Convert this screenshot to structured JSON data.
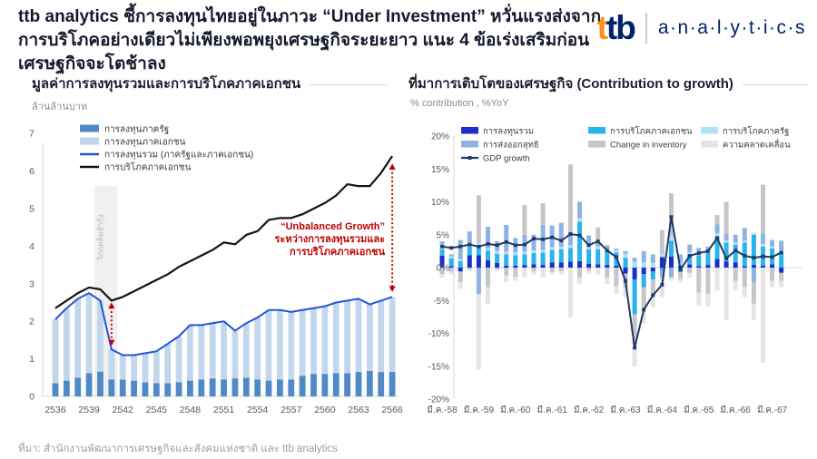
{
  "header": {
    "title": "ttb analytics ชี้การลงทุนไทยอยู่ในภาวะ “Under Investment” หวั่นแรงส่งจากการบริโภคอย่างเดียวไม่เพียงพอพยุงเศรษฐกิจระยะยาว แนะ 4 ข้อเร่งเสริมก่อนเศรษฐกิจจะโตช้าลง",
    "logo": {
      "ttb_t1": "t",
      "ttb_t2": "t",
      "ttb_b": "b",
      "analytics": "a·n·a·l·y·t·i·c·s"
    }
  },
  "footer": {
    "source": "ที่มา: สำนักงานพัฒนาการเศรษฐกิจและสังคมแห่งชาติ และ ttb analytics"
  },
  "colors": {
    "accent_red": "#c00000",
    "axis_text": "#595959",
    "rule_gray": "#d8d8d8"
  },
  "chart_data": [
    {
      "type": "bar",
      "title": "มูลค่าการลงทุนรวมและการบริโภคภาคเอกชน",
      "ylabel": "ล้านล้านบาท",
      "ylim": [
        0,
        7
      ],
      "ytick_step": 1,
      "x": [
        2536,
        2537,
        2538,
        2539,
        2540,
        2541,
        2542,
        2543,
        2544,
        2545,
        2546,
        2547,
        2548,
        2549,
        2550,
        2551,
        2552,
        2553,
        2554,
        2555,
        2556,
        2557,
        2558,
        2559,
        2560,
        2561,
        2562,
        2563,
        2564,
        2565,
        2566
      ],
      "x_tick_every": 3,
      "series": [
        {
          "name": "การลงทุนภาครัฐ",
          "kind": "bar",
          "color": "#5089c8",
          "values": [
            0.35,
            0.42,
            0.5,
            0.62,
            0.66,
            0.45,
            0.45,
            0.42,
            0.38,
            0.35,
            0.35,
            0.38,
            0.42,
            0.45,
            0.48,
            0.45,
            0.48,
            0.5,
            0.45,
            0.42,
            0.45,
            0.45,
            0.55,
            0.6,
            0.6,
            0.62,
            0.62,
            0.65,
            0.68,
            0.65,
            0.65
          ]
        },
        {
          "name": "การลงทุนภาคเอกชน",
          "kind": "bar",
          "color": "#c3d7ec",
          "values": [
            1.7,
            1.93,
            2.1,
            2.13,
            1.89,
            0.8,
            0.65,
            0.68,
            0.77,
            0.85,
            1.05,
            1.22,
            1.48,
            1.45,
            1.47,
            1.55,
            1.27,
            1.45,
            1.65,
            1.88,
            1.85,
            1.8,
            1.75,
            1.75,
            1.8,
            1.88,
            1.93,
            1.95,
            1.77,
            1.9,
            2.0
          ]
        },
        {
          "name": "การลงทุนรวม (ภาครัฐและภาคเอกชน)",
          "kind": "line",
          "color": "#2255d4",
          "values": [
            2.05,
            2.35,
            2.6,
            2.75,
            2.55,
            1.25,
            1.1,
            1.1,
            1.15,
            1.2,
            1.4,
            1.6,
            1.9,
            1.9,
            1.95,
            2.0,
            1.75,
            1.95,
            2.1,
            2.3,
            2.3,
            2.25,
            2.3,
            2.35,
            2.4,
            2.5,
            2.55,
            2.6,
            2.45,
            2.55,
            2.65
          ]
        },
        {
          "name": "การบริโภคภาคเอกชน",
          "kind": "line",
          "color": "#141414",
          "values": [
            2.35,
            2.55,
            2.75,
            2.9,
            2.85,
            2.55,
            2.65,
            2.8,
            2.95,
            3.1,
            3.25,
            3.45,
            3.6,
            3.75,
            3.9,
            4.1,
            4.05,
            4.3,
            4.4,
            4.7,
            4.75,
            4.75,
            4.85,
            5.0,
            5.15,
            5.35,
            5.65,
            5.6,
            5.6,
            5.95,
            6.4
          ]
        }
      ],
      "annotations": {
        "band": {
          "label": "วิกฤตต้มยำกุ้ง",
          "x_from": 2540,
          "x_to": 2541,
          "y_top": 5.6,
          "fill": "#ebebeb",
          "text_color": "#b8b8b8"
        },
        "arrows": [
          {
            "x": 2541,
            "y_from": 2.5,
            "y_to": 1.35
          },
          {
            "x": 2566,
            "y_from": 6.2,
            "y_to": 2.78
          }
        ],
        "note": {
          "lines": [
            "“Unbalanced Growth”",
            "ระหว่างการลงทุนรวมและ",
            "การบริโภคภาคเอกชน"
          ],
          "color": "#c00000"
        }
      }
    },
    {
      "type": "bar",
      "title": "ที่มาการเติบโตของเศรษฐกิจ (Contribution to growth)",
      "ylabel": "% contribution , %YoY",
      "ylim": [
        -20,
        20
      ],
      "ytick_step": 5,
      "x_count": 38,
      "tick_every": 4,
      "tick_labels": [
        "มี.ค.-58",
        "มี.ค.-59",
        "มี.ค.-60",
        "มี.ค.-61",
        "มี.ค.-62",
        "มี.ค.-63",
        "มี.ค.-64",
        "มี.ค.-65",
        "มี.ค.-66",
        "มี.ค.-67"
      ],
      "series": [
        {
          "name": "การลงทุนรวม",
          "kind": "bar",
          "color": "#1b2ec8",
          "values": [
            1.8,
            0.2,
            -0.6,
            1.9,
            1.9,
            1.1,
            0.7,
            0.3,
            0.3,
            0.4,
            0.5,
            0.4,
            0.8,
            0.8,
            0.9,
            1.0,
            0.6,
            0.5,
            0.4,
            0.3,
            -0.9,
            -1.8,
            -1.0,
            -0.6,
            1.6,
            1.7,
            0.3,
            0.5,
            0.2,
            0.4,
            1.3,
            0.9,
            0.8,
            0.2,
            0.4,
            0.3,
            0.5,
            -0.8
          ]
        },
        {
          "name": "การบริโภคภาคเอกชน",
          "kind": "bar",
          "color": "#29b4ea",
          "values": [
            1.0,
            1.2,
            1.0,
            1.3,
            1.4,
            1.5,
            1.4,
            1.7,
            1.6,
            1.6,
            1.7,
            1.9,
            1.9,
            2.0,
            2.1,
            6.0,
            2.2,
            2.3,
            2.1,
            2.0,
            1.5,
            -5.3,
            -2.0,
            -1.2,
            -0.5,
            2.4,
            -0.7,
            1.4,
            1.7,
            1.9,
            3.5,
            2.9,
            2.7,
            3.6,
            4.6,
            2.9,
            2.4,
            2.2
          ]
        },
        {
          "name": "การบริโภคภาครัฐ",
          "kind": "bar",
          "color": "#aee2f8",
          "values": [
            0.4,
            0.3,
            0.3,
            0.4,
            0.4,
            0.3,
            0.4,
            0.4,
            0.4,
            0.4,
            0.4,
            0.4,
            0.4,
            0.4,
            0.4,
            0.5,
            0.4,
            0.4,
            0.4,
            0.4,
            0.6,
            0.9,
            0.8,
            0.7,
            0.6,
            0.7,
            0.5,
            0.4,
            0.3,
            0.3,
            0.4,
            0.3,
            0.3,
            0.3,
            0.3,
            0.4,
            0.3,
            0.4
          ]
        },
        {
          "name": "การส่งออกสุทธิ",
          "kind": "bar",
          "color": "#8fb3e0",
          "values": [
            0.8,
            0.3,
            2.9,
            1.9,
            -4.0,
            3.3,
            1.5,
            4.1,
            2.2,
            2.6,
            2.4,
            3.8,
            3.3,
            3.6,
            2.0,
            2.5,
            1.7,
            0.9,
            0.5,
            0.2,
            0.4,
            0.6,
            1.7,
            1.3,
            -1.0,
            -1.5,
            1.2,
            1.2,
            0.8,
            0.6,
            1.4,
            1.0,
            1.2,
            1.9,
            -2.3,
            1.5,
            1.0,
            1.5
          ]
        },
        {
          "name": "Change in inventory",
          "kind": "bar",
          "color": "#c6c6c6",
          "values": [
            -1.0,
            -0.6,
            -1.6,
            -0.3,
            7.3,
            -3.0,
            -0.3,
            -1.2,
            -1.4,
            4.5,
            -0.6,
            3.3,
            -0.7,
            -0.6,
            10.3,
            -1.5,
            -0.5,
            2.0,
            -1.5,
            -2.8,
            -2.2,
            -4.5,
            -3.5,
            -2.5,
            3.5,
            6.5,
            -1.0,
            -0.8,
            -3.8,
            -4.0,
            1.4,
            4.9,
            -2.0,
            -3.0,
            -3.2,
            7.5,
            -2.0,
            -1.2
          ]
        },
        {
          "name": "ความคลาดเคลื่อน",
          "kind": "bar",
          "color": "#e5e5e5",
          "values": [
            -0.5,
            -0.4,
            -1.0,
            -0.2,
            -11.5,
            -2.5,
            -0.2,
            -1.0,
            -0.6,
            -1.5,
            -0.4,
            -1.5,
            -0.3,
            -0.4,
            -7.5,
            -1.0,
            -0.4,
            -1.0,
            -1.0,
            -1.2,
            -1.4,
            -3.4,
            -2.0,
            -1.7,
            -3.0,
            -0.5,
            -0.5,
            -0.7,
            -2.0,
            -2.0,
            -3.5,
            -8.0,
            -1.5,
            -1.5,
            -2.5,
            -14.5,
            -1.0,
            -1.0
          ]
        },
        {
          "name": "GDP growth",
          "kind": "line",
          "color": "#1f3a66",
          "values": [
            3.2,
            3.0,
            3.2,
            3.5,
            3.2,
            3.6,
            3.4,
            3.9,
            3.4,
            3.5,
            4.4,
            4.3,
            4.6,
            4.1,
            5.1,
            4.9,
            3.4,
            4.0,
            2.6,
            1.6,
            -2.0,
            -12.2,
            -6.4,
            -4.2,
            -2.6,
            7.7,
            -0.3,
            1.8,
            2.2,
            2.5,
            4.5,
            1.4,
            2.6,
            1.8,
            1.5,
            1.7,
            1.6,
            2.3
          ]
        }
      ]
    }
  ]
}
